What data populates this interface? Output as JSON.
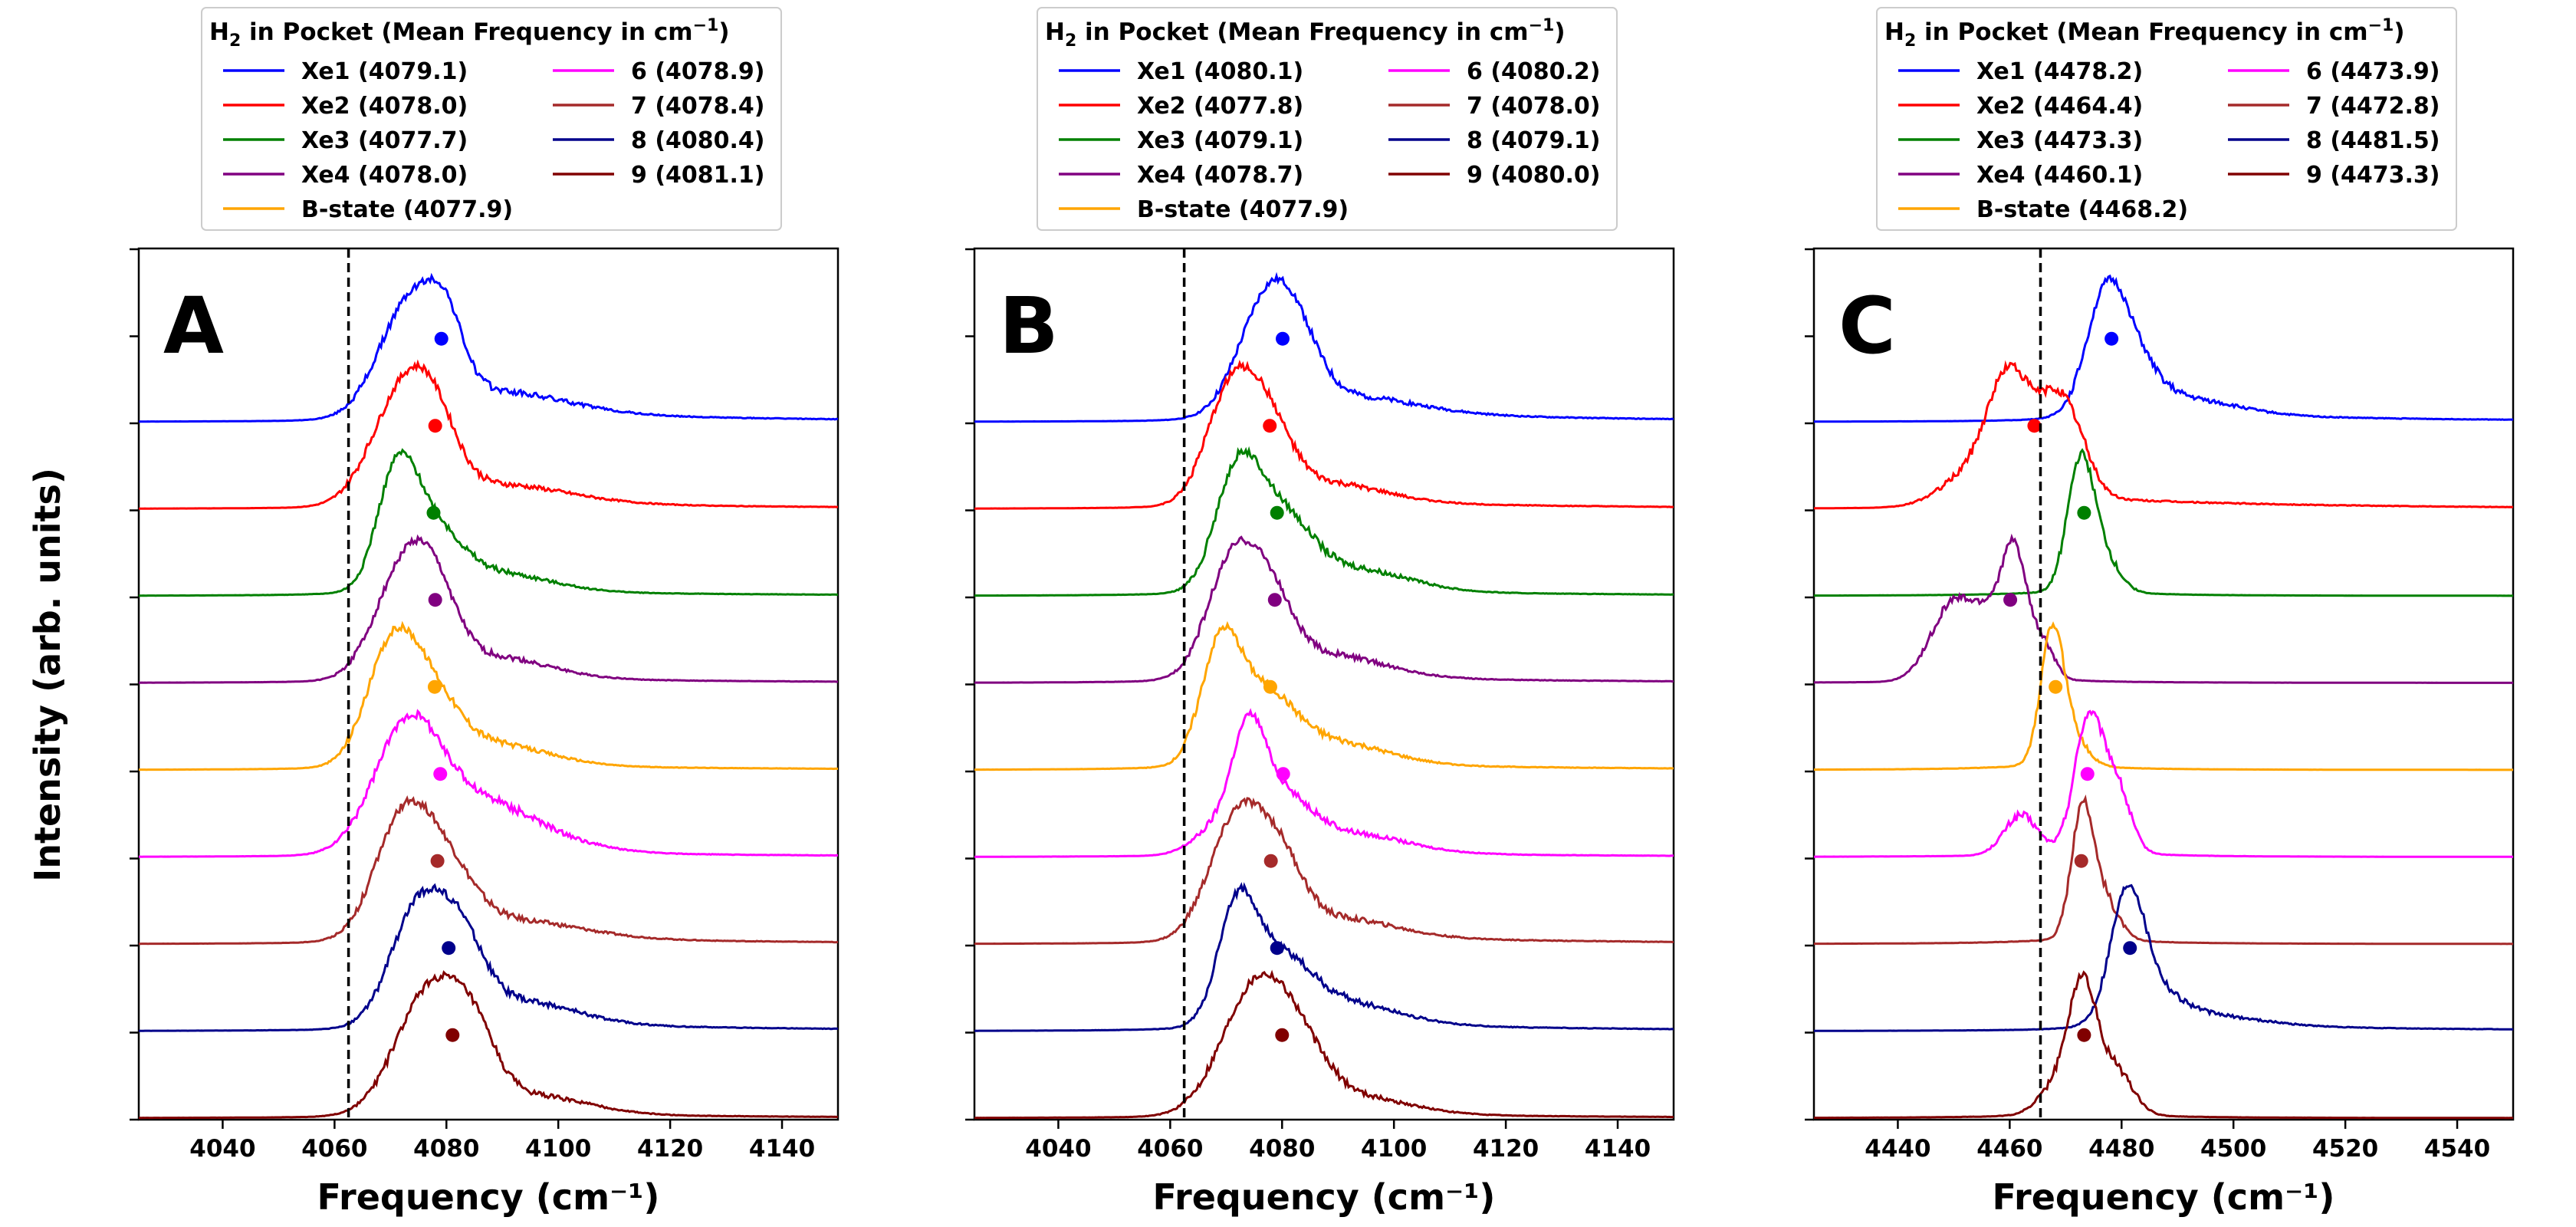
{
  "figure": {
    "ylabel": "Intensity (arb. units)",
    "xlabel": "Frequency (cm⁻¹)",
    "reference_line_style": "dashed"
  },
  "chart_data": [
    {
      "type": "line",
      "panel_label": "A",
      "xlabel": "Frequency (cm⁻¹)",
      "ylabel": "Intensity (arb. units)",
      "xlim": [
        4025,
        4150
      ],
      "xticks": [
        4040,
        4060,
        4080,
        4100,
        4120,
        4140
      ],
      "yticks_labeled": false,
      "grid": false,
      "reference_line_x": 4062.5,
      "legend": {
        "title_prefix": "H",
        "title_subscript": "2",
        "title_rest": " in Pocket (Mean Frequency in cm",
        "title_superscript": "−1",
        "title_suffix": ")",
        "placement": "top-center",
        "columns": 2
      },
      "series": [
        {
          "name": "Xe1",
          "label": "Xe1 (4079.1)",
          "mean_frequency": 4079.1,
          "color": "#0000ff",
          "offset": 8,
          "peaks": [
            {
              "x": 4073.5,
              "a": 1.0,
              "w": 5.5
            },
            {
              "x": 4080,
              "a": 0.45,
              "w": 3
            },
            {
              "x": 4090,
              "a": 0.18,
              "w": 12
            }
          ],
          "tail": 0.08
        },
        {
          "name": "Xe2",
          "label": "Xe2 (4078.0)",
          "mean_frequency": 4078.0,
          "color": "#ff0000",
          "offset": 7,
          "peaks": [
            {
              "x": 4072,
              "a": 1.0,
              "w": 5.5
            },
            {
              "x": 4078,
              "a": 0.45,
              "w": 4
            },
            {
              "x": 4090,
              "a": 0.16,
              "w": 12
            }
          ],
          "tail": 0.06
        },
        {
          "name": "Xe3",
          "label": "Xe3 (4077.7)",
          "mean_frequency": 4077.7,
          "color": "#008000",
          "offset": 6,
          "peaks": [
            {
              "x": 4071,
              "a": 1.0,
              "w": 3.5
            },
            {
              "x": 4077,
              "a": 0.55,
              "w": 5
            },
            {
              "x": 4088,
              "a": 0.18,
              "w": 10
            }
          ],
          "tail": 0.04
        },
        {
          "name": "Xe4",
          "label": "Xe4 (4078.0)",
          "mean_frequency": 4078.0,
          "color": "#800080",
          "offset": 5,
          "peaks": [
            {
              "x": 4072,
              "a": 0.95,
              "w": 5
            },
            {
              "x": 4078,
              "a": 0.55,
              "w": 4
            },
            {
              "x": 4088,
              "a": 0.2,
              "w": 10
            }
          ],
          "tail": 0.04
        },
        {
          "name": "B-state",
          "label": "B-state (4077.9)",
          "mean_frequency": 4077.9,
          "color": "#ffa500",
          "offset": 4,
          "peaks": [
            {
              "x": 4070,
              "a": 1.0,
              "w": 4.5
            },
            {
              "x": 4077,
              "a": 0.55,
              "w": 5
            },
            {
              "x": 4088,
              "a": 0.2,
              "w": 10
            }
          ],
          "tail": 0.04
        },
        {
          "name": "6",
          "label": "6 (4078.9)",
          "mean_frequency": 4078.9,
          "color": "#ff00ff",
          "offset": 3,
          "peaks": [
            {
              "x": 4073,
              "a": 1.0,
              "w": 6
            },
            {
              "x": 4086,
              "a": 0.3,
              "w": 8
            },
            {
              "x": 4095,
              "a": 0.12,
              "w": 10
            }
          ],
          "tail": 0.04
        },
        {
          "name": "7",
          "label": "7 (4078.4)",
          "mean_frequency": 4078.4,
          "color": "#a52a2a",
          "offset": 2,
          "peaks": [
            {
              "x": 4072,
              "a": 1.0,
              "w": 5
            },
            {
              "x": 4080,
              "a": 0.5,
              "w": 5
            },
            {
              "x": 4092,
              "a": 0.15,
              "w": 12
            }
          ],
          "tail": 0.06
        },
        {
          "name": "8",
          "label": "8 (4080.4)",
          "mean_frequency": 4080.4,
          "color": "#00008b",
          "offset": 1,
          "peaks": [
            {
              "x": 4075,
              "a": 0.95,
              "w": 5
            },
            {
              "x": 4083,
              "a": 0.5,
              "w": 4
            },
            {
              "x": 4093,
              "a": 0.18,
              "w": 10
            }
          ],
          "tail": 0.06
        },
        {
          "name": "9",
          "label": "9 (4081.1)",
          "mean_frequency": 4081.1,
          "color": "#800000",
          "offset": 0,
          "peaks": [
            {
              "x": 4077,
              "a": 1.0,
              "w": 6
            },
            {
              "x": 4085,
              "a": 0.4,
              "w": 4
            },
            {
              "x": 4095,
              "a": 0.15,
              "w": 10
            }
          ],
          "tail": 0.03
        }
      ]
    },
    {
      "type": "line",
      "panel_label": "B",
      "xlabel": "Frequency (cm⁻¹)",
      "ylabel": "Intensity (arb. units)",
      "xlim": [
        4025,
        4150
      ],
      "xticks": [
        4040,
        4060,
        4080,
        4100,
        4120,
        4140
      ],
      "yticks_labeled": false,
      "grid": false,
      "reference_line_x": 4062.5,
      "legend": {
        "title_prefix": "H",
        "title_subscript": "2",
        "title_rest": " in Pocket (Mean Frequency in cm",
        "title_superscript": "−1",
        "title_suffix": ")",
        "placement": "top-center",
        "columns": 2
      },
      "series": [
        {
          "name": "Xe1",
          "label": "Xe1 (4080.1)",
          "mean_frequency": 4080.1,
          "color": "#0000ff",
          "offset": 8,
          "peaks": [
            {
              "x": 4077,
              "a": 1.0,
              "w": 5
            },
            {
              "x": 4083,
              "a": 0.4,
              "w": 4
            },
            {
              "x": 4092,
              "a": 0.15,
              "w": 12
            }
          ],
          "tail": 0.08
        },
        {
          "name": "Xe2",
          "label": "Xe2 (4077.8)",
          "mean_frequency": 4077.8,
          "color": "#ff0000",
          "offset": 7,
          "peaks": [
            {
              "x": 4071,
              "a": 1.0,
              "w": 4.5
            },
            {
              "x": 4078,
              "a": 0.5,
              "w": 4
            },
            {
              "x": 4088,
              "a": 0.16,
              "w": 10
            }
          ],
          "tail": 0.06
        },
        {
          "name": "Xe3",
          "label": "Xe3 (4079.1)",
          "mean_frequency": 4079.1,
          "color": "#008000",
          "offset": 6,
          "peaks": [
            {
              "x": 4072,
              "a": 1.0,
              "w": 4
            },
            {
              "x": 4080,
              "a": 0.55,
              "w": 5
            },
            {
              "x": 4092,
              "a": 0.2,
              "w": 10
            }
          ],
          "tail": 0.04
        },
        {
          "name": "Xe4",
          "label": "Xe4 (4078.7)",
          "mean_frequency": 4078.7,
          "color": "#800080",
          "offset": 5,
          "peaks": [
            {
              "x": 4071,
              "a": 1.0,
              "w": 4.5
            },
            {
              "x": 4078,
              "a": 0.55,
              "w": 4
            },
            {
              "x": 4088,
              "a": 0.2,
              "w": 10
            }
          ],
          "tail": 0.05
        },
        {
          "name": "B-state",
          "label": "B-state (4077.9)",
          "mean_frequency": 4077.9,
          "color": "#ffa500",
          "offset": 4,
          "peaks": [
            {
              "x": 4069,
              "a": 1.0,
              "w": 3.5
            },
            {
              "x": 4077,
              "a": 0.5,
              "w": 5
            },
            {
              "x": 4088,
              "a": 0.2,
              "w": 10
            }
          ],
          "tail": 0.05
        },
        {
          "name": "6",
          "label": "6 (4080.2)",
          "mean_frequency": 4080.2,
          "color": "#ff00ff",
          "offset": 3,
          "peaks": [
            {
              "x": 4074,
              "a": 1.1,
              "w": 3
            },
            {
              "x": 4080,
              "a": 0.5,
              "w": 5
            },
            {
              "x": 4092,
              "a": 0.2,
              "w": 10
            },
            {
              "x": 4068,
              "a": 0.25,
              "w": 4
            }
          ],
          "tail": 0.04
        },
        {
          "name": "7",
          "label": "7 (4078.0)",
          "mean_frequency": 4078.0,
          "color": "#a52a2a",
          "offset": 2,
          "peaks": [
            {
              "x": 4072,
              "a": 1.0,
              "w": 5
            },
            {
              "x": 4080,
              "a": 0.45,
              "w": 4
            },
            {
              "x": 4090,
              "a": 0.15,
              "w": 10
            }
          ],
          "tail": 0.06
        },
        {
          "name": "8",
          "label": "8 (4079.1)",
          "mean_frequency": 4079.1,
          "color": "#00008b",
          "offset": 1,
          "peaks": [
            {
              "x": 4072,
              "a": 1.0,
              "w": 3.5
            },
            {
              "x": 4080,
              "a": 0.45,
              "w": 5
            },
            {
              "x": 4090,
              "a": 0.2,
              "w": 10
            }
          ],
          "tail": 0.06
        },
        {
          "name": "9",
          "label": "9 (4080.0)",
          "mean_frequency": 4080.0,
          "color": "#800000",
          "offset": 0,
          "peaks": [
            {
              "x": 4075,
              "a": 1.0,
              "w": 6
            },
            {
              "x": 4083,
              "a": 0.35,
              "w": 5
            },
            {
              "x": 4092,
              "a": 0.15,
              "w": 10
            }
          ],
          "tail": 0.03
        }
      ]
    },
    {
      "type": "line",
      "panel_label": "C",
      "xlabel": "Frequency (cm⁻¹)",
      "ylabel": "Intensity (arb. units)",
      "xlim": [
        4425,
        4550
      ],
      "xticks": [
        4440,
        4460,
        4480,
        4500,
        4520,
        4540
      ],
      "yticks_labeled": false,
      "grid": false,
      "reference_line_x": 4465.5,
      "legend": {
        "title_prefix": "H",
        "title_subscript": "2",
        "title_rest": " in Pocket (Mean Frequency in cm",
        "title_superscript": "−1",
        "title_suffix": ")",
        "placement": "top-center",
        "columns": 2
      },
      "series": [
        {
          "name": "Xe1",
          "label": "Xe1 (4478.2)",
          "mean_frequency": 4478.2,
          "color": "#0000ff",
          "offset": 8,
          "peaks": [
            {
              "x": 4477,
              "a": 1.0,
              "w": 3.5
            },
            {
              "x": 4482,
              "a": 0.4,
              "w": 4
            },
            {
              "x": 4490,
              "a": 0.15,
              "w": 10
            }
          ],
          "tail": 0.06
        },
        {
          "name": "Xe2",
          "label": "Xe2 (4464.4)",
          "mean_frequency": 4464.4,
          "color": "#ff0000",
          "offset": 7,
          "peaks": [
            {
              "x": 4460,
              "a": 0.95,
              "w": 4
            },
            {
              "x": 4468,
              "a": 0.55,
              "w": 3
            },
            {
              "x": 4472,
              "a": 0.35,
              "w": 3
            },
            {
              "x": 4452,
              "a": 0.2,
              "w": 5
            }
          ],
          "tail": 0.06
        },
        {
          "name": "Xe3",
          "label": "Xe3 (4473.3)",
          "mean_frequency": 4473.3,
          "color": "#008000",
          "offset": 6,
          "peaks": [
            {
              "x": 4472.5,
              "a": 1.0,
              "w": 2.3
            },
            {
              "x": 4476,
              "a": 0.35,
              "w": 3
            }
          ],
          "tail": 0.0
        },
        {
          "name": "Xe4",
          "label": "Xe4 (4460.1)",
          "mean_frequency": 4460.1,
          "color": "#800080",
          "offset": 5,
          "peaks": [
            {
              "x": 4461,
              "a": 1.0,
              "w": 2.2
            },
            {
              "x": 4457,
              "a": 0.45,
              "w": 3
            },
            {
              "x": 4450,
              "a": 0.7,
              "w": 4
            },
            {
              "x": 4466,
              "a": 0.3,
              "w": 2
            }
          ],
          "tail": 0.0
        },
        {
          "name": "B-state",
          "label": "B-state (4468.2)",
          "mean_frequency": 4468.2,
          "color": "#ffa500",
          "offset": 4,
          "peaks": [
            {
              "x": 4467.5,
              "a": 1.0,
              "w": 2
            },
            {
              "x": 4470,
              "a": 0.35,
              "w": 3
            }
          ],
          "tail": 0.0
        },
        {
          "name": "6",
          "label": "6 (4473.9)",
          "mean_frequency": 4473.9,
          "color": "#ff00ff",
          "offset": 3,
          "peaks": [
            {
              "x": 4474,
              "a": 1.0,
              "w": 2.5
            },
            {
              "x": 4479,
              "a": 0.5,
              "w": 2.5
            },
            {
              "x": 4462,
              "a": 0.3,
              "w": 3
            }
          ],
          "tail": 0.0
        },
        {
          "name": "7",
          "label": "7 (4472.8)",
          "mean_frequency": 4472.8,
          "color": "#a52a2a",
          "offset": 2,
          "peaks": [
            {
              "x": 4473,
              "a": 1.0,
              "w": 2
            },
            {
              "x": 4477,
              "a": 0.3,
              "w": 2.5
            }
          ],
          "tail": 0.0
        },
        {
          "name": "8",
          "label": "8 (4481.5)",
          "mean_frequency": 4481.5,
          "color": "#00008b",
          "offset": 1,
          "peaks": [
            {
              "x": 4481,
              "a": 1.0,
              "w": 3
            },
            {
              "x": 4485,
              "a": 0.25,
              "w": 5
            },
            {
              "x": 4495,
              "a": 0.08,
              "w": 10
            }
          ],
          "tail": 0.04
        },
        {
          "name": "9",
          "label": "9 (4473.3)",
          "mean_frequency": 4473.3,
          "color": "#800000",
          "offset": 0,
          "peaks": [
            {
              "x": 4473,
              "a": 1.0,
              "w": 2.5
            },
            {
              "x": 4479,
              "a": 0.35,
              "w": 3
            },
            {
              "x": 4468,
              "a": 0.2,
              "w": 3
            }
          ],
          "tail": 0.0
        }
      ]
    }
  ]
}
